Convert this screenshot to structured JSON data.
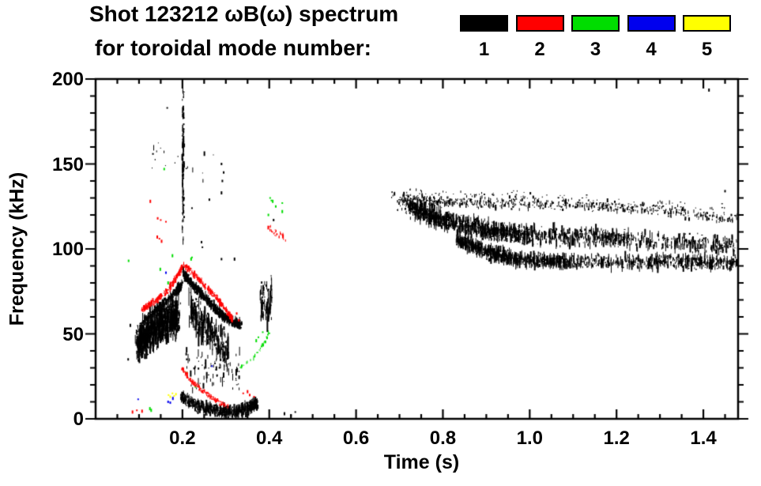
{
  "title": {
    "line1": "Shot 123212 ωB(ω) spectrum",
    "line2": "for toroidal mode number:"
  },
  "legend": {
    "items": [
      {
        "label": "1",
        "color": "#000000"
      },
      {
        "label": "2",
        "color": "#ff0000"
      },
      {
        "label": "3",
        "color": "#00dd00"
      },
      {
        "label": "4",
        "color": "#0000ee"
      },
      {
        "label": "5",
        "color": "#ffff00"
      }
    ]
  },
  "chart_data": {
    "type": "scatter",
    "title": "Shot 123212 ωB(ω) spectrum for toroidal mode number: 1-5",
    "xlabel": "Time (s)",
    "ylabel": "Frequency (kHz)",
    "xlim": [
      0,
      1.48
    ],
    "ylim": [
      0,
      200
    ],
    "x_ticks": [
      0.2,
      0.4,
      0.6,
      0.8,
      1.0,
      1.2,
      1.4
    ],
    "x_tick_labels": [
      "0.2",
      "0.4",
      "0.6",
      "0.8",
      "1.0",
      "1.2",
      "1.4"
    ],
    "x_minor_step": 0.05,
    "y_ticks": [
      0,
      50,
      100,
      150,
      200
    ],
    "y_tick_labels": [
      "0",
      "50",
      "100",
      "150",
      "200"
    ],
    "y_minor_step": 10,
    "grid": false,
    "legend_position": "top-right",
    "features": [
      {
        "name": "early-blob-core",
        "mode": 1,
        "color": "#000000",
        "n": 1100,
        "path": [
          [
            0.095,
            44
          ],
          [
            0.125,
            52
          ],
          [
            0.16,
            57
          ],
          [
            0.19,
            60
          ]
        ],
        "spread_f": 13,
        "spread_t": 0.006,
        "streak_khz": 9
      },
      {
        "name": "early-rising-band",
        "mode": 1,
        "color": "#000000",
        "n": 350,
        "path": [
          [
            0.112,
            58
          ],
          [
            0.15,
            67
          ],
          [
            0.185,
            75
          ],
          [
            0.197,
            79
          ]
        ],
        "spread_f": 2.5,
        "spread_t": 0.003,
        "streak_khz": 4
      },
      {
        "name": "falling-band",
        "mode": 1,
        "color": "#000000",
        "n": 800,
        "path": [
          [
            0.2,
            86
          ],
          [
            0.23,
            77
          ],
          [
            0.265,
            67
          ],
          [
            0.3,
            59
          ],
          [
            0.335,
            55
          ]
        ],
        "spread_f": 3,
        "spread_t": 0.003,
        "streak_khz": 4
      },
      {
        "name": "falling-band-hanging-streaks",
        "mode": 1,
        "color": "#000000",
        "n": 260,
        "path": [
          [
            0.215,
            66
          ],
          [
            0.26,
            52
          ],
          [
            0.305,
            40
          ]
        ],
        "spread_f": 11,
        "spread_t": 0.005,
        "streak_khz": 13
      },
      {
        "name": "mid-sparse-scatter",
        "mode": 1,
        "color": "#000000",
        "n": 80,
        "path": [
          [
            0.205,
            30
          ],
          [
            0.33,
            28
          ]
        ],
        "spread_f": 14,
        "spread_t": 0.004,
        "streak_khz": 6
      },
      {
        "name": "burst-column-t0.2",
        "mode": 1,
        "color": "#000000",
        "n": 150,
        "path": [
          [
            0.2,
            150
          ]
        ],
        "spread_f": 52,
        "spread_t": 0.0025,
        "streak_khz": 5
      },
      {
        "name": "high-specks-early",
        "mode": 1,
        "color": "#000000",
        "n": 20,
        "path": [
          [
            0.13,
            160
          ],
          [
            0.25,
            150
          ]
        ],
        "spread_f": 25,
        "spread_t": 0.04,
        "streak_khz": 4
      },
      {
        "name": "low-frequency-blob",
        "mode": 1,
        "color": "#000000",
        "n": 700,
        "path": [
          [
            0.195,
            13
          ],
          [
            0.23,
            8
          ],
          [
            0.27,
            5
          ],
          [
            0.305,
            4
          ],
          [
            0.33,
            5
          ],
          [
            0.355,
            7
          ],
          [
            0.37,
            9
          ]
        ],
        "spread_f": 4,
        "spread_t": 0.004,
        "streak_khz": 5
      },
      {
        "name": "tall-streaks-t0.39",
        "mode": 1,
        "color": "#000000",
        "n": 90,
        "path": [
          [
            0.378,
            62
          ],
          [
            0.385,
            70
          ],
          [
            0.395,
            66
          ],
          [
            0.405,
            72
          ]
        ],
        "spread_f": 16,
        "spread_t": 0.002,
        "streak_khz": 12
      },
      {
        "name": "late-band-top",
        "mode": 1,
        "color": "#000000",
        "n": 600,
        "path": [
          [
            0.7,
            129
          ],
          [
            0.85,
            127
          ],
          [
            1.05,
            126
          ],
          [
            1.25,
            124
          ],
          [
            1.48,
            117
          ]
        ],
        "spread_f": 3.5,
        "spread_t": 0.004,
        "streak_khz": 3
      },
      {
        "name": "late-band-mid",
        "mode": 1,
        "color": "#000000",
        "n": 1600,
        "path": [
          [
            0.72,
            124
          ],
          [
            0.8,
            117
          ],
          [
            0.9,
            111
          ],
          [
            1.0,
            108
          ],
          [
            1.2,
            106
          ],
          [
            1.48,
            102
          ]
        ],
        "spread_f": 6,
        "spread_t": 0.004,
        "streak_khz": 7
      },
      {
        "name": "late-band-bottom",
        "mode": 1,
        "color": "#000000",
        "n": 1300,
        "path": [
          [
            0.83,
            106
          ],
          [
            0.9,
            98
          ],
          [
            0.97,
            94
          ],
          [
            1.1,
            92.5
          ],
          [
            1.3,
            92.5
          ],
          [
            1.48,
            92
          ]
        ],
        "spread_f": 4.5,
        "spread_t": 0.004,
        "streak_khz": 7
      },
      {
        "name": "late-band-sparse-top",
        "mode": 1,
        "color": "#000000",
        "n": 130,
        "path": [
          [
            0.68,
            133
          ],
          [
            1.0,
            131
          ],
          [
            1.48,
            123
          ]
        ],
        "spread_f": 3.5,
        "spread_t": 0.004,
        "streak_khz": 2
      },
      {
        "name": "late-band-onset",
        "mode": 1,
        "color": "#000000",
        "n": 60,
        "path": [
          [
            0.7,
            127
          ],
          [
            0.74,
            124
          ]
        ],
        "spread_f": 5,
        "spread_t": 0.012,
        "streak_khz": 2
      },
      {
        "name": "black-specks",
        "mode": 1,
        "color": "#000000",
        "dots": [
          [
            0.075,
            35
          ],
          [
            0.08,
            55
          ],
          [
            0.165,
            183
          ],
          [
            0.222,
            124
          ],
          [
            0.244,
            104
          ],
          [
            0.246,
            101
          ],
          [
            0.262,
            129
          ],
          [
            0.29,
            150
          ],
          [
            0.292,
            140
          ],
          [
            0.29,
            133
          ],
          [
            0.295,
            145
          ],
          [
            0.29,
            94
          ],
          [
            0.32,
            94
          ],
          [
            0.41,
            117
          ],
          [
            0.435,
            3
          ],
          [
            0.45,
            2
          ],
          [
            0.46,
            4
          ],
          [
            1.413,
            193.5
          ],
          [
            1.45,
            134
          ]
        ]
      },
      {
        "name": "green-diagonal",
        "mode": 3,
        "color": "#00dd00",
        "n": 40,
        "path": [
          [
            0.328,
            30
          ],
          [
            0.355,
            34
          ],
          [
            0.375,
            40
          ],
          [
            0.39,
            46
          ],
          [
            0.398,
            51
          ]
        ],
        "spread_f": 1.2,
        "spread_t": 0.002,
        "streak_khz": 2
      },
      {
        "name": "green-high-cluster",
        "mode": 3,
        "color": "#00dd00",
        "dots": [
          [
            0.402,
            130
          ],
          [
            0.405,
            128.5
          ],
          [
            0.408,
            128
          ],
          [
            0.43,
            127
          ],
          [
            0.43,
            122
          ],
          [
            0.398,
            120
          ],
          [
            0.415,
            125
          ]
        ]
      },
      {
        "name": "green-specks",
        "mode": 3,
        "color": "#00dd00",
        "dots": [
          [
            0.076,
            93
          ],
          [
            0.149,
            88
          ],
          [
            0.167,
            80
          ],
          [
            0.21,
            27
          ],
          [
            0.22,
            94
          ],
          [
            0.222,
            95
          ],
          [
            0.23,
            19
          ],
          [
            0.125,
            6
          ],
          [
            0.128,
            5
          ],
          [
            0.158,
            147
          ],
          [
            0.177,
            96
          ],
          [
            0.37,
            46
          ],
          [
            0.375,
            48
          ],
          [
            0.385,
            51
          ]
        ]
      },
      {
        "name": "blue-specks",
        "mode": 4,
        "color": "#0000ee",
        "dots": [
          [
            0.098,
            11.5
          ],
          [
            0.162,
            86
          ],
          [
            0.167,
            10
          ],
          [
            0.172,
            9.5
          ],
          [
            0.178,
            12
          ],
          [
            0.268,
            31
          ]
        ]
      },
      {
        "name": "yellow-specks",
        "mode": 5,
        "color": "#ffff00",
        "dots": [
          [
            0.168,
            14
          ],
          [
            0.172,
            13
          ],
          [
            0.177,
            15
          ],
          [
            0.181,
            13.5
          ],
          [
            0.185,
            14.5
          ]
        ]
      },
      {
        "name": "red-rising-band",
        "mode": 2,
        "color": "#ff0000",
        "n": 260,
        "path": [
          [
            0.105,
            64
          ],
          [
            0.14,
            70
          ],
          [
            0.17,
            77
          ],
          [
            0.19,
            85
          ],
          [
            0.198,
            90
          ]
        ],
        "spread_f": 2,
        "spread_t": 0.0025,
        "streak_khz": 3
      },
      {
        "name": "red-falling-band",
        "mode": 2,
        "color": "#ff0000",
        "n": 280,
        "path": [
          [
            0.202,
            91
          ],
          [
            0.24,
            81
          ],
          [
            0.275,
            72
          ],
          [
            0.305,
            62
          ],
          [
            0.315,
            58
          ]
        ],
        "spread_f": 2,
        "spread_t": 0.0025,
        "streak_khz": 3
      },
      {
        "name": "red-downchirp-low",
        "mode": 2,
        "color": "#ff0000",
        "n": 160,
        "path": [
          [
            0.197,
            30
          ],
          [
            0.22,
            22
          ],
          [
            0.248,
            16
          ],
          [
            0.275,
            11
          ],
          [
            0.305,
            7
          ]
        ],
        "spread_f": 1.5,
        "spread_t": 0.002,
        "streak_khz": 2
      },
      {
        "name": "red-high-cluster",
        "mode": 2,
        "color": "#ff0000",
        "n": 30,
        "path": [
          [
            0.395,
            112
          ],
          [
            0.41,
            109
          ],
          [
            0.425,
            108
          ],
          [
            0.435,
            106
          ]
        ],
        "spread_f": 3,
        "spread_t": 0.003,
        "streak_khz": 3
      },
      {
        "name": "red-specks",
        "mode": 2,
        "color": "#ff0000",
        "dots": [
          [
            0.085,
            4
          ],
          [
            0.095,
            5
          ],
          [
            0.107,
            4.5
          ],
          [
            0.126,
            128
          ],
          [
            0.143,
            118
          ],
          [
            0.15,
            117
          ],
          [
            0.162,
            116
          ],
          [
            0.142,
            107
          ],
          [
            0.147,
            106
          ],
          [
            0.152,
            104.5
          ],
          [
            0.29,
            8.4
          ],
          [
            0.31,
            60
          ],
          [
            0.325,
            62
          ],
          [
            0.33,
            58
          ],
          [
            0.34,
            15
          ],
          [
            0.35,
            16
          ],
          [
            0.355,
            14
          ],
          [
            0.365,
            13
          ]
        ]
      }
    ]
  }
}
